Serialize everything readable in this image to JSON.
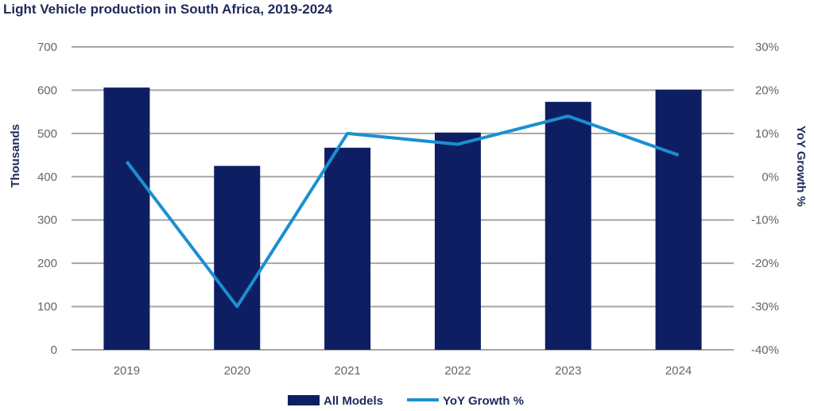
{
  "chart_data": {
    "type": "bar",
    "title": "Light Vehicle production in South Africa, 2019-2024",
    "categories": [
      "2019",
      "2020",
      "2021",
      "2022",
      "2023",
      "2024"
    ],
    "series": [
      {
        "name": "All Models",
        "type": "bar",
        "axis": "left",
        "color": "#0d1f62",
        "values": [
          606,
          425,
          467,
          502,
          573,
          601
        ]
      },
      {
        "name": "YoY Growth %",
        "type": "line",
        "axis": "right",
        "color": "#1b8fd2",
        "values": [
          3.5,
          -30,
          10,
          7.5,
          14,
          5
        ]
      }
    ],
    "ylabel": "Thousands",
    "ylabel_right": "YoY Growth %",
    "ylim": [
      0,
      700
    ],
    "ylim_right": [
      -40,
      30
    ],
    "yticks": [
      "0",
      "100",
      "200",
      "300",
      "400",
      "500",
      "600",
      "700"
    ],
    "yticks_right": [
      "-40%",
      "-30%",
      "-20%",
      "-10%",
      "0%",
      "10%",
      "20%",
      "30%"
    ],
    "grid": true,
    "legend_position": "bottom"
  }
}
